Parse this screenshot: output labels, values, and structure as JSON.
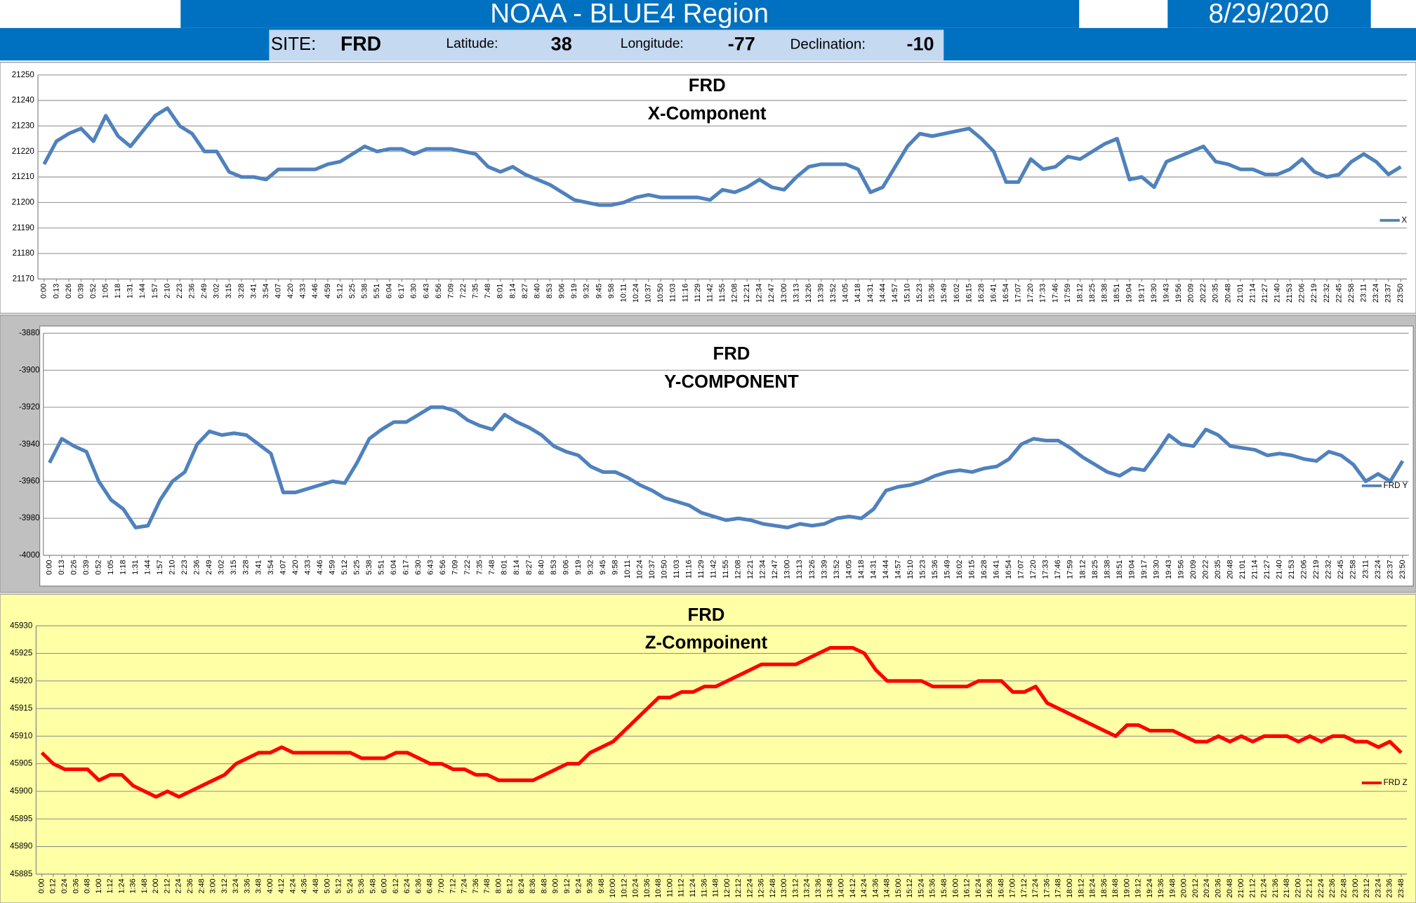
{
  "header": {
    "title": "NOAA - BLUE4 Region",
    "date": "8/29/2020",
    "site_label": "SITE:",
    "site": "FRD",
    "latitude_label": "Latitude:",
    "latitude": "38",
    "longitude_label": "Longitude:",
    "longitude": "-77",
    "declination_label": "Declination:",
    "declination": "-10"
  },
  "chart_data": [
    {
      "type": "line",
      "title": "FRD",
      "subtitle": "X-Component",
      "grid": true,
      "legend": "right",
      "categories": [
        "0:00",
        "0:13",
        "0:26",
        "0:39",
        "0:52",
        "1:05",
        "1:18",
        "1:31",
        "1:44",
        "1:57",
        "2:10",
        "2:23",
        "2:36",
        "2:49",
        "3:02",
        "3:15",
        "3:28",
        "3:41",
        "3:54",
        "4:07",
        "4:20",
        "4:33",
        "4:46",
        "4:59",
        "5:12",
        "5:25",
        "5:38",
        "5:51",
        "6:04",
        "6:17",
        "6:30",
        "6:43",
        "6:56",
        "7:09",
        "7:22",
        "7:35",
        "7:48",
        "8:01",
        "8:14",
        "8:27",
        "8:40",
        "8:53",
        "9:06",
        "9:19",
        "9:32",
        "9:45",
        "9:58",
        "10:11",
        "10:24",
        "10:37",
        "10:50",
        "11:03",
        "11:16",
        "11:29",
        "11:42",
        "11:55",
        "12:08",
        "12:21",
        "12:34",
        "12:47",
        "13:00",
        "13:13",
        "13:26",
        "13:39",
        "13:52",
        "14:05",
        "14:18",
        "14:31",
        "14:44",
        "14:57",
        "15:10",
        "15:23",
        "15:36",
        "15:49",
        "16:02",
        "16:15",
        "16:28",
        "16:41",
        "16:54",
        "17:07",
        "17:20",
        "17:33",
        "17:46",
        "17:59",
        "18:12",
        "18:25",
        "18:38",
        "18:51",
        "19:04",
        "19:17",
        "19:30",
        "19:43",
        "19:56",
        "20:09",
        "20:22",
        "20:35",
        "20:48",
        "21:01",
        "21:14",
        "21:27",
        "21:40",
        "21:53",
        "22:06",
        "22:19",
        "22:32",
        "22:45",
        "22:58",
        "23:11",
        "23:24",
        "23:37",
        "23:50"
      ],
      "series": [
        {
          "name": "X",
          "color": "#4f81bd",
          "values": [
            21215,
            21224,
            21227,
            21229,
            21224,
            21234,
            21226,
            21222,
            21228,
            21234,
            21237,
            21230,
            21227,
            21220,
            21220,
            21212,
            21210,
            21210,
            21209,
            21213,
            21213,
            21213,
            21213,
            21215,
            21216,
            21219,
            21222,
            21220,
            21221,
            21221,
            21219,
            21221,
            21221,
            21221,
            21220,
            21219,
            21214,
            21212,
            21214,
            21211,
            21209,
            21207,
            21204,
            21201,
            21200,
            21199,
            21199,
            21200,
            21202,
            21203,
            21202,
            21202,
            21202,
            21202,
            21201,
            21205,
            21204,
            21206,
            21209,
            21206,
            21205,
            21210,
            21214,
            21215,
            21215,
            21215,
            21213,
            21204,
            21206,
            21214,
            21222,
            21227,
            21226,
            21227,
            21228,
            21229,
            21225,
            21220,
            21208,
            21208,
            21217,
            21213,
            21214,
            21218,
            21217,
            21220,
            21223,
            21225,
            21209,
            21210,
            21206,
            21216,
            21218,
            21220,
            21222,
            21216,
            21215,
            21213,
            21213,
            21211,
            21211,
            21213,
            21217,
            21212,
            21210,
            21211,
            21216,
            21219,
            21216,
            21211,
            21214
          ]
        }
      ],
      "ylim": [
        21170,
        21250
      ],
      "yticks": [
        21170,
        21180,
        21190,
        21200,
        21210,
        21220,
        21230,
        21240,
        21250
      ]
    },
    {
      "type": "line",
      "title": "FRD",
      "subtitle": "Y-COMPONENT",
      "grid": true,
      "legend": "right",
      "categories": [
        "0:00",
        "0:13",
        "0:26",
        "0:39",
        "0:52",
        "1:05",
        "1:18",
        "1:31",
        "1:44",
        "1:57",
        "2:10",
        "2:23",
        "2:36",
        "2:49",
        "3:02",
        "3:15",
        "3:28",
        "3:41",
        "3:54",
        "4:07",
        "4:20",
        "4:33",
        "4:46",
        "4:59",
        "5:12",
        "5:25",
        "5:38",
        "5:51",
        "6:04",
        "6:17",
        "6:30",
        "6:43",
        "6:56",
        "7:09",
        "7:22",
        "7:35",
        "7:48",
        "8:01",
        "8:14",
        "8:27",
        "8:40",
        "8:53",
        "9:06",
        "9:19",
        "9:32",
        "9:45",
        "9:58",
        "10:11",
        "10:24",
        "10:37",
        "10:50",
        "11:03",
        "11:16",
        "11:29",
        "11:42",
        "11:55",
        "12:08",
        "12:21",
        "12:34",
        "12:47",
        "13:00",
        "13:13",
        "13:26",
        "13:39",
        "13:52",
        "14:05",
        "14:18",
        "14:31",
        "14:44",
        "14:57",
        "15:10",
        "15:23",
        "15:36",
        "15:49",
        "16:02",
        "16:15",
        "16:28",
        "16:41",
        "16:54",
        "17:07",
        "17:20",
        "17:33",
        "17:46",
        "17:59",
        "18:12",
        "18:25",
        "18:38",
        "18:51",
        "19:04",
        "19:17",
        "19:30",
        "19:43",
        "19:56",
        "20:09",
        "20:22",
        "20:35",
        "20:48",
        "21:01",
        "21:14",
        "21:27",
        "21:40",
        "21:53",
        "22:06",
        "22:19",
        "22:32",
        "22:45",
        "22:58",
        "23:11",
        "23:24",
        "23:37",
        "23:50"
      ],
      "series": [
        {
          "name": "FRD Y",
          "color": "#4f81bd",
          "values": [
            -3950,
            -3937,
            -3941,
            -3944,
            -3960,
            -3970,
            -3975,
            -3985,
            -3984,
            -3970,
            -3960,
            -3955,
            -3940,
            -3933,
            -3935,
            -3934,
            -3935,
            -3940,
            -3945,
            -3966,
            -3966,
            -3964,
            -3962,
            -3960,
            -3961,
            -3950,
            -3937,
            -3932,
            -3928,
            -3928,
            -3924,
            -3920,
            -3920,
            -3922,
            -3927,
            -3930,
            -3932,
            -3924,
            -3928,
            -3931,
            -3935,
            -3941,
            -3944,
            -3946,
            -3952,
            -3955,
            -3955,
            -3958,
            -3962,
            -3965,
            -3969,
            -3971,
            -3973,
            -3977,
            -3979,
            -3981,
            -3980,
            -3981,
            -3983,
            -3984,
            -3985,
            -3983,
            -3984,
            -3983,
            -3980,
            -3979,
            -3980,
            -3975,
            -3965,
            -3963,
            -3962,
            -3960,
            -3957,
            -3955,
            -3954,
            -3955,
            -3953,
            -3952,
            -3948,
            -3940,
            -3937,
            -3938,
            -3938,
            -3942,
            -3947,
            -3951,
            -3955,
            -3957,
            -3953,
            -3954,
            -3945,
            -3935,
            -3940,
            -3941,
            -3932,
            -3935,
            -3941,
            -3942,
            -3943,
            -3946,
            -3945,
            -3946,
            -3948,
            -3949,
            -3944,
            -3946,
            -3951,
            -3960,
            -3956,
            -3960,
            -3949
          ]
        }
      ],
      "ylim": [
        -4000,
        -3880
      ],
      "yticks": [
        -4000,
        -3980,
        -3960,
        -3940,
        -3920,
        -3900,
        -3880
      ]
    },
    {
      "type": "line",
      "title": "FRD",
      "subtitle": "Z-Compoinent",
      "grid": true,
      "legend": "right",
      "categories": [
        "0:00",
        "0:12",
        "0:24",
        "0:36",
        "0:48",
        "1:00",
        "1:12",
        "1:24",
        "1:36",
        "1:48",
        "2:00",
        "2:12",
        "2:24",
        "2:36",
        "2:48",
        "3:00",
        "3:12",
        "3:24",
        "3:36",
        "3:48",
        "4:00",
        "4:12",
        "4:24",
        "4:36",
        "4:48",
        "5:00",
        "5:12",
        "5:24",
        "5:36",
        "5:48",
        "6:00",
        "6:12",
        "6:24",
        "6:36",
        "6:48",
        "7:00",
        "7:12",
        "7:24",
        "7:36",
        "7:48",
        "8:00",
        "8:12",
        "8:24",
        "8:36",
        "8:48",
        "9:00",
        "9:12",
        "9:24",
        "9:36",
        "9:48",
        "10:00",
        "10:12",
        "10:24",
        "10:36",
        "10:48",
        "11:00",
        "11:12",
        "11:24",
        "11:36",
        "11:48",
        "12:00",
        "12:12",
        "12:24",
        "12:36",
        "12:48",
        "13:00",
        "13:12",
        "13:24",
        "13:36",
        "13:48",
        "14:00",
        "14:12",
        "14:24",
        "14:36",
        "14:48",
        "15:00",
        "15:12",
        "15:24",
        "15:36",
        "15:48",
        "16:00",
        "16:12",
        "16:24",
        "16:36",
        "16:48",
        "17:00",
        "17:12",
        "17:24",
        "17:36",
        "17:48",
        "18:00",
        "18:12",
        "18:24",
        "18:36",
        "18:48",
        "19:00",
        "19:12",
        "19:24",
        "19:36",
        "19:48",
        "20:00",
        "20:12",
        "20:24",
        "20:36",
        "20:48",
        "21:00",
        "21:12",
        "21:24",
        "21:36",
        "21:48",
        "22:00",
        "22:12",
        "22:24",
        "22:36",
        "22:48",
        "23:00",
        "23:12",
        "23:24",
        "23:36",
        "23:48"
      ],
      "series": [
        {
          "name": "FRD Z",
          "color": "#ff0000",
          "values": [
            45907,
            45905,
            45904,
            45904,
            45904,
            45902,
            45903,
            45903,
            45901,
            45900,
            45899,
            45900,
            45899,
            45900,
            45901,
            45902,
            45903,
            45905,
            45906,
            45907,
            45907,
            45908,
            45907,
            45907,
            45907,
            45907,
            45907,
            45907,
            45906,
            45906,
            45906,
            45907,
            45907,
            45906,
            45905,
            45905,
            45904,
            45904,
            45903,
            45903,
            45902,
            45902,
            45902,
            45902,
            45903,
            45904,
            45905,
            45905,
            45907,
            45908,
            45909,
            45911,
            45913,
            45915,
            45917,
            45917,
            45918,
            45918,
            45919,
            45919,
            45920,
            45921,
            45922,
            45923,
            45923,
            45923,
            45923,
            45924,
            45925,
            45926,
            45926,
            45926,
            45925,
            45922,
            45920,
            45920,
            45920,
            45920,
            45919,
            45919,
            45919,
            45919,
            45920,
            45920,
            45920,
            45918,
            45918,
            45919,
            45916,
            45915,
            45914,
            45913,
            45912,
            45911,
            45910,
            45912,
            45912,
            45911,
            45911,
            45911,
            45910,
            45909,
            45909,
            45910,
            45909,
            45910,
            45909,
            45910,
            45910,
            45910,
            45909,
            45910,
            45909,
            45910,
            45910,
            45909,
            45909,
            45908,
            45909,
            45907
          ]
        }
      ],
      "ylim": [
        45885,
        45930
      ],
      "yticks": [
        45885,
        45890,
        45895,
        45900,
        45905,
        45910,
        45915,
        45920,
        45925,
        45930
      ]
    }
  ]
}
